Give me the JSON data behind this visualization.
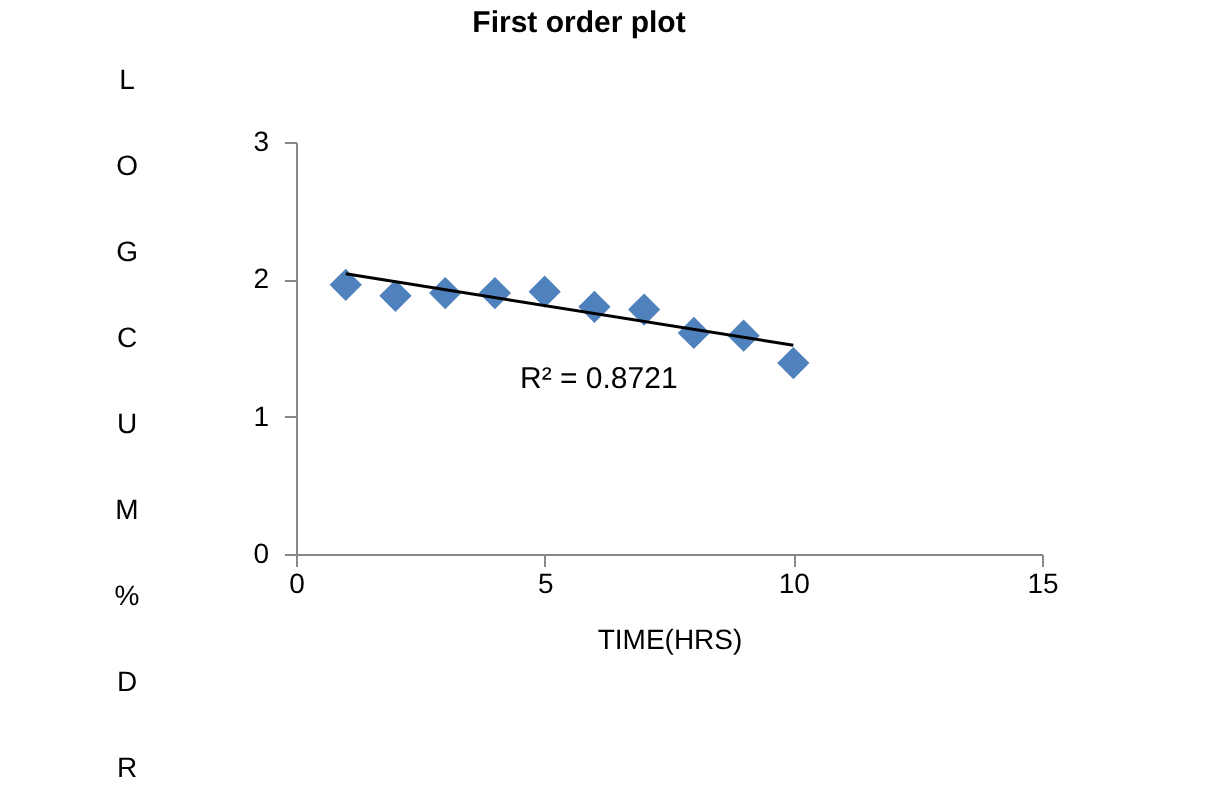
{
  "chart_data": {
    "type": "scatter",
    "title": "First order plot",
    "xlabel": "TIME(HRS)",
    "ylabel": "LOGCUM%DR",
    "x": [
      1,
      2,
      3,
      4,
      5,
      6,
      7,
      8,
      9,
      10
    ],
    "series": [
      {
        "color": "#4f81bd",
        "marker": "diamond",
        "values": [
          1.96,
          1.88,
          1.9,
          1.9,
          1.91,
          1.8,
          1.78,
          1.61,
          1.59,
          1.39
        ]
      },
      {
        "type": "line",
        "color": "#000000",
        "x": [
          1,
          10
        ],
        "values": [
          2.04,
          1.52
        ]
      }
    ],
    "annotations": [
      "R² = 0.8721"
    ],
    "xlim": [
      0,
      15
    ],
    "xticks": [
      0,
      5,
      10,
      15
    ],
    "ylim": [
      0,
      3
    ],
    "yticks": [
      0,
      1,
      2,
      3
    ],
    "grid": false
  }
}
